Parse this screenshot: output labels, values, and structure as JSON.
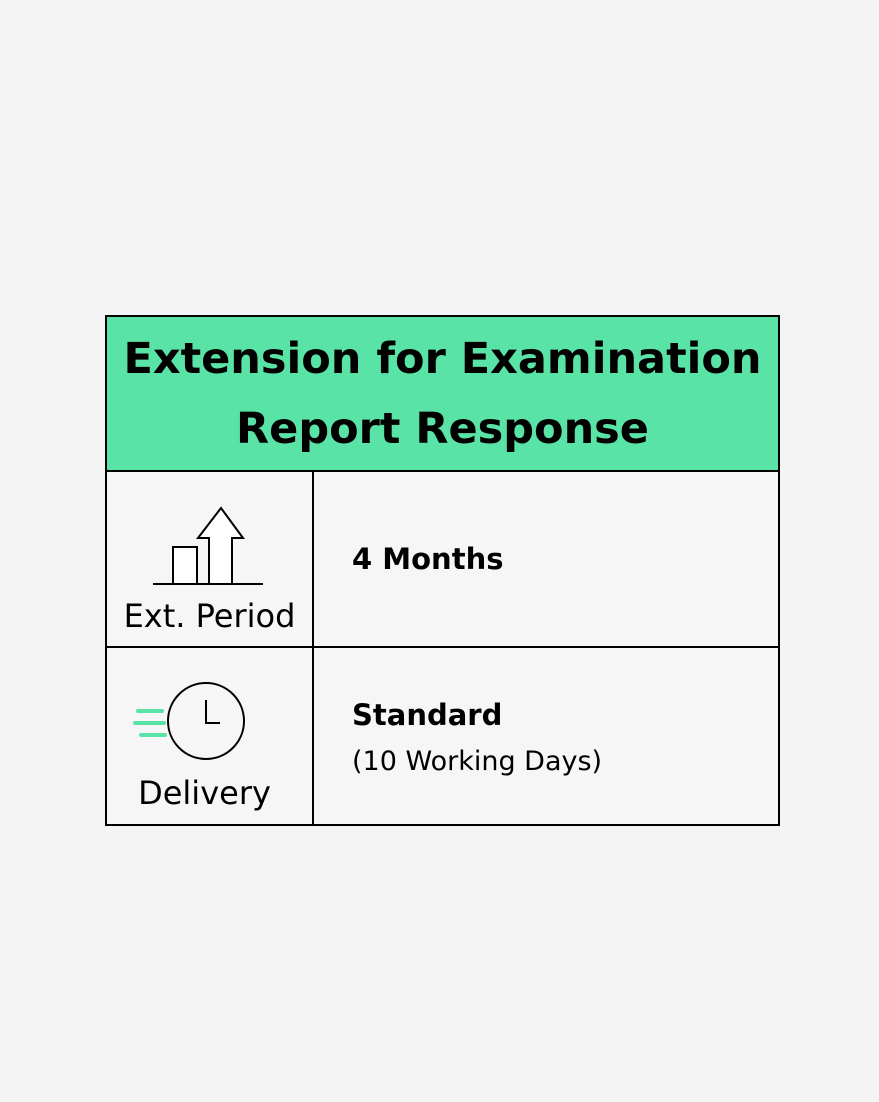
{
  "title_line1": "Extension for Examination",
  "title_line2": "Report Response",
  "rows": [
    {
      "icon": "chart-arrow-up-icon",
      "label": "Ext. Period",
      "value": "4 Months"
    },
    {
      "icon": "fast-clock-icon",
      "label": "Delivery",
      "value": "Standard",
      "subvalue": "(10 Working Days)"
    }
  ],
  "colors": {
    "accent": "#5ae3a6",
    "border": "#000000"
  }
}
